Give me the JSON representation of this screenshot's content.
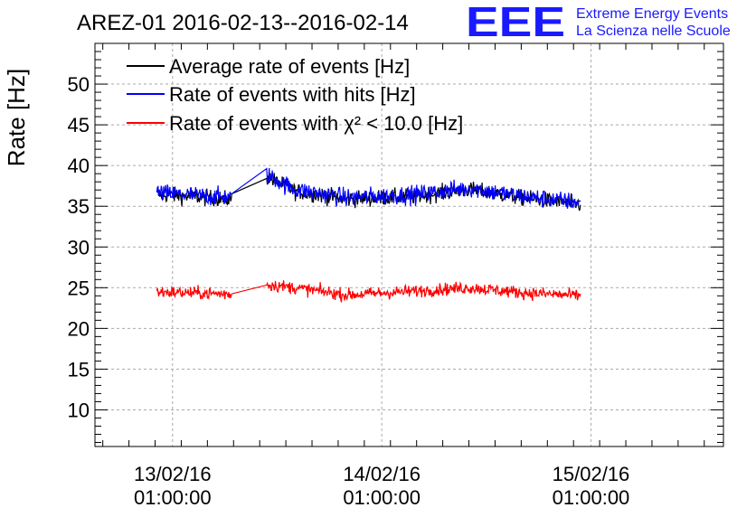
{
  "chart_data": {
    "type": "line",
    "title": "AREZ-01 2016-02-13--2016-02-14",
    "ylabel": "Rate [Hz]",
    "xlabel": "",
    "ylim": [
      5.5,
      55
    ],
    "yticks": [
      10,
      15,
      20,
      25,
      30,
      35,
      40,
      45,
      50
    ],
    "ytick_labels": [
      "10",
      "15",
      "20",
      "25",
      "30",
      "35",
      "40",
      "45",
      "50"
    ],
    "xlim_hours": [
      -8.9,
      63.2
    ],
    "xticks_hours": [
      0,
      24,
      48
    ],
    "xtick_labels": [
      {
        "date": "13/02/16",
        "time": "01:00:00"
      },
      {
        "date": "14/02/16",
        "time": "01:00:00"
      },
      {
        "date": "15/02/16",
        "time": "01:00:00"
      }
    ],
    "grid": true,
    "legend_position": "top-left",
    "series": [
      {
        "name": "Average rate of events [Hz]",
        "color": "#000000",
        "mean": 36.6,
        "noise": 0.7
      },
      {
        "name": "Rate of events with hits [Hz]",
        "color": "#0000ff",
        "mean": 36.6,
        "noise": 0.8
      },
      {
        "name": "Rate of events with χ² < 10.0 [Hz]",
        "color": "#ff0000",
        "mean": 24.5,
        "noise": 0.55
      }
    ],
    "segments_hours": [
      [
        -1.8,
        6.8
      ],
      [
        10.8,
        46.8
      ]
    ],
    "gap_hours": [
      6.8,
      10.8
    ],
    "blue_trend_hours": [
      [
        -1.8,
        36.6
      ],
      [
        6.8,
        36.0
      ],
      [
        10.8,
        38.8
      ],
      [
        14,
        37.0
      ],
      [
        20,
        36.0
      ],
      [
        28,
        36.4
      ],
      [
        34,
        37.2
      ],
      [
        40,
        36.2
      ],
      [
        46.8,
        35.4
      ]
    ],
    "red_trend_hours": [
      [
        -1.8,
        24.5
      ],
      [
        6.8,
        24.2
      ],
      [
        10.8,
        25.4
      ],
      [
        14,
        25.0
      ],
      [
        20,
        24.1
      ],
      [
        28,
        24.6
      ],
      [
        34,
        25.0
      ],
      [
        40,
        24.4
      ],
      [
        46.8,
        24.0
      ]
    ]
  },
  "logo": {
    "letters": "EEE",
    "line1": "Extreme Energy Events",
    "line2": "La Scienza nelle Scuole",
    "color": "#1a1aff"
  }
}
